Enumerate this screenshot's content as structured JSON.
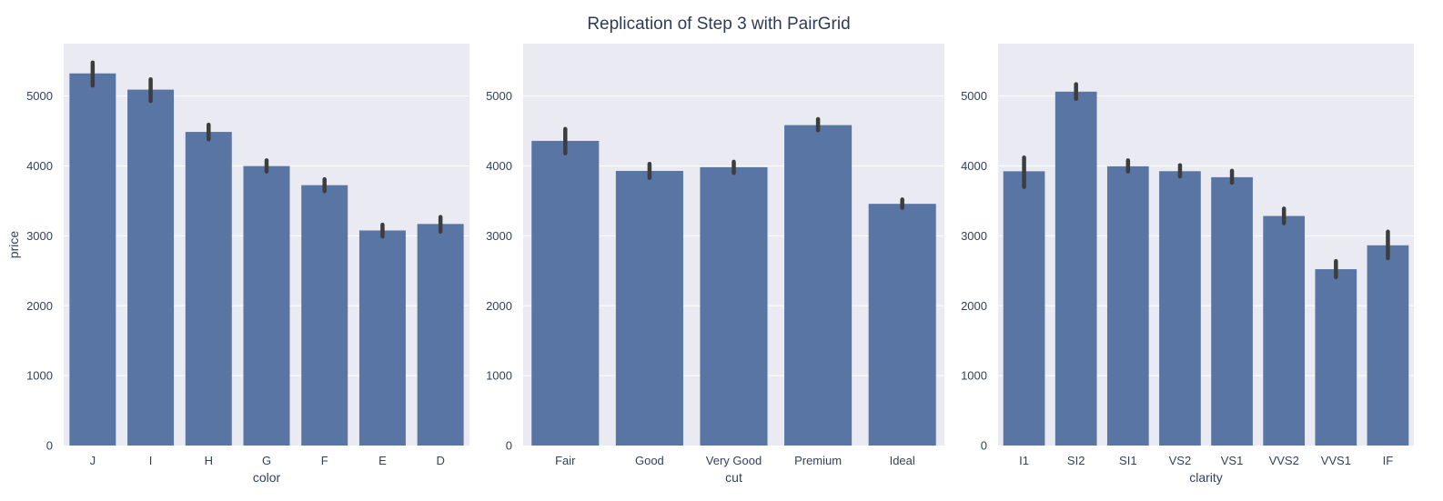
{
  "figure": {
    "suptitle": "Replication of Step 3 with PairGrid",
    "style": {
      "axes_background": "#eaeaf2",
      "grid_color": "#ffffff",
      "bar_color": "#5975a4",
      "errorbar_color": "#3d3d3d",
      "text_color": "#33415c"
    }
  },
  "chart_data": [
    {
      "type": "bar",
      "xlabel": "color",
      "ylabel": "price",
      "categories": [
        "J",
        "I",
        "H",
        "G",
        "F",
        "E",
        "D"
      ],
      "values": [
        5324,
        5092,
        4487,
        3999,
        3725,
        3077,
        3170
      ],
      "error_low": [
        5150,
        4930,
        4380,
        3920,
        3640,
        2990,
        3060
      ],
      "error_high": [
        5480,
        5240,
        4590,
        4080,
        3810,
        3160,
        3270
      ],
      "yticks": [
        0,
        1000,
        2000,
        3000,
        4000,
        5000
      ],
      "ylim": [
        0,
        5750
      ],
      "grid": true
    },
    {
      "type": "bar",
      "xlabel": "cut",
      "ylabel": "",
      "categories": [
        "Fair",
        "Good",
        "Very Good",
        "Premium",
        "Ideal"
      ],
      "values": [
        4359,
        3929,
        3982,
        4584,
        3458
      ],
      "error_low": [
        4180,
        3830,
        3900,
        4510,
        3400
      ],
      "error_high": [
        4530,
        4030,
        4060,
        4670,
        3520
      ],
      "yticks": [
        0,
        1000,
        2000,
        3000,
        4000,
        5000
      ],
      "ylim": [
        0,
        5750
      ],
      "grid": true
    },
    {
      "type": "bar",
      "xlabel": "clarity",
      "ylabel": "",
      "categories": [
        "I1",
        "SI2",
        "SI1",
        "VS2",
        "VS1",
        "VVS2",
        "VVS1",
        "IF"
      ],
      "values": [
        3924,
        5063,
        3996,
        3925,
        3839,
        3284,
        2523,
        2865
      ],
      "error_low": [
        3700,
        4960,
        3920,
        3850,
        3760,
        3180,
        2410,
        2680
      ],
      "error_high": [
        4120,
        5170,
        4080,
        4010,
        3930,
        3390,
        2640,
        3060
      ],
      "yticks": [
        0,
        1000,
        2000,
        3000,
        4000,
        5000
      ],
      "ylim": [
        0,
        5750
      ],
      "grid": true
    }
  ]
}
